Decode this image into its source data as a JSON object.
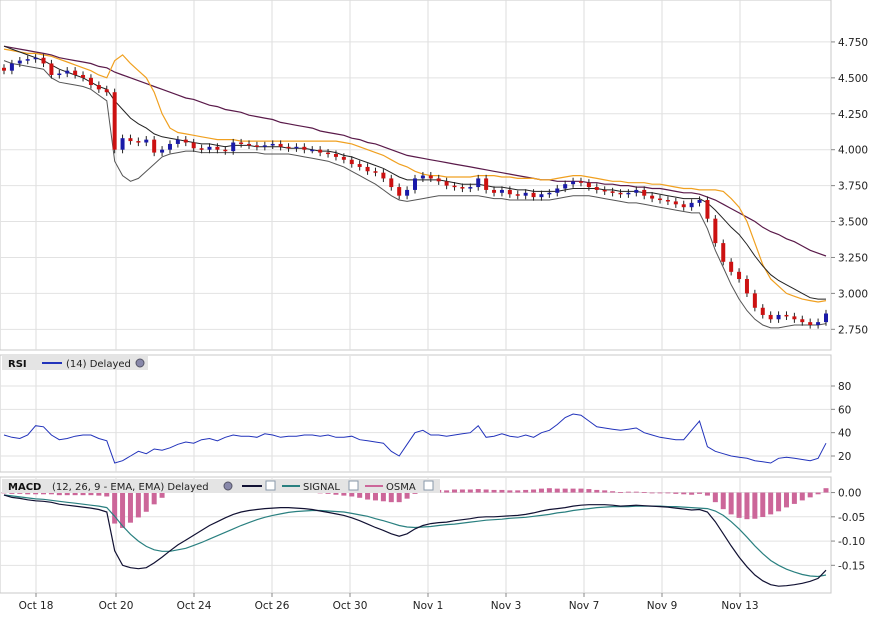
{
  "chart_data": {
    "type": "candlestick",
    "x_labels": [
      "Oct 18",
      "Oct 20",
      "Oct 24",
      "Oct 26",
      "Oct 30",
      "Nov 1",
      "Nov 3",
      "Nov 7",
      "Nov 9",
      "Nov 13"
    ],
    "colors": {
      "up": "#1a1aa8",
      "down": "#cc1111",
      "ema_fast": "#222222",
      "ema_slow": "#5a1a4a",
      "band_upper": "#f0a020",
      "band_lower": "#555555",
      "rsi": "#2233bb",
      "macd": "#111133",
      "signal": "#2a8080",
      "osma": "#cc6699"
    },
    "price_panel": {
      "ylim": [
        2.62,
        5.0
      ],
      "ticks": [
        "4.750",
        "4.500",
        "4.250",
        "4.000",
        "3.750",
        "3.500",
        "3.250",
        "3.000",
        "2.750"
      ],
      "close": [
        4.55,
        4.6,
        4.62,
        4.63,
        4.64,
        4.6,
        4.52,
        4.53,
        4.55,
        4.52,
        4.5,
        4.45,
        4.42,
        4.4,
        4.0,
        4.08,
        4.06,
        4.05,
        4.07,
        3.98,
        4.0,
        4.04,
        4.07,
        4.05,
        4.01,
        4.0,
        4.02,
        4.0,
        3.99,
        4.05,
        4.04,
        4.03,
        4.02,
        4.03,
        4.04,
        4.02,
        4.01,
        4.02,
        4.0,
        4.0,
        3.98,
        3.97,
        3.95,
        3.93,
        3.9,
        3.88,
        3.85,
        3.84,
        3.8,
        3.74,
        3.68,
        3.72,
        3.8,
        3.82,
        3.8,
        3.78,
        3.75,
        3.74,
        3.73,
        3.74,
        3.8,
        3.72,
        3.7,
        3.72,
        3.69,
        3.68,
        3.7,
        3.67,
        3.69,
        3.7,
        3.73,
        3.76,
        3.78,
        3.77,
        3.74,
        3.72,
        3.71,
        3.7,
        3.69,
        3.7,
        3.72,
        3.68,
        3.66,
        3.65,
        3.64,
        3.62,
        3.6,
        3.63,
        3.65,
        3.52,
        3.35,
        3.22,
        3.15,
        3.1,
        3.0,
        2.9,
        2.85,
        2.82,
        2.85,
        2.84,
        2.82,
        2.8,
        2.78,
        2.8,
        2.86
      ],
      "ema_fast": [
        4.72,
        4.7,
        4.68,
        4.66,
        4.64,
        4.62,
        4.59,
        4.56,
        4.54,
        4.52,
        4.5,
        4.47,
        4.44,
        4.42,
        4.34,
        4.28,
        4.22,
        4.18,
        4.15,
        4.11,
        4.09,
        4.08,
        4.07,
        4.06,
        4.05,
        4.04,
        4.04,
        4.03,
        4.02,
        4.03,
        4.03,
        4.03,
        4.02,
        4.02,
        4.02,
        4.02,
        4.01,
        4.01,
        4.01,
        4.0,
        3.99,
        3.99,
        3.98,
        3.96,
        3.95,
        3.93,
        3.91,
        3.89,
        3.87,
        3.84,
        3.81,
        3.79,
        3.79,
        3.79,
        3.79,
        3.79,
        3.78,
        3.77,
        3.76,
        3.76,
        3.76,
        3.75,
        3.74,
        3.74,
        3.73,
        3.72,
        3.72,
        3.71,
        3.71,
        3.71,
        3.71,
        3.72,
        3.73,
        3.73,
        3.73,
        3.73,
        3.72,
        3.72,
        3.71,
        3.71,
        3.71,
        3.7,
        3.7,
        3.69,
        3.68,
        3.67,
        3.66,
        3.66,
        3.66,
        3.63,
        3.58,
        3.52,
        3.46,
        3.41,
        3.34,
        3.26,
        3.19,
        3.13,
        3.09,
        3.06,
        3.03,
        3.0,
        2.97,
        2.96,
        2.96
      ],
      "ema_slow": [
        4.72,
        4.71,
        4.7,
        4.69,
        4.68,
        4.67,
        4.66,
        4.64,
        4.63,
        4.62,
        4.61,
        4.6,
        4.58,
        4.57,
        4.54,
        4.52,
        4.5,
        4.48,
        4.46,
        4.44,
        4.42,
        4.4,
        4.38,
        4.36,
        4.35,
        4.33,
        4.31,
        4.3,
        4.28,
        4.27,
        4.26,
        4.24,
        4.23,
        4.22,
        4.21,
        4.19,
        4.18,
        4.17,
        4.16,
        4.15,
        4.13,
        4.12,
        4.11,
        4.1,
        4.08,
        4.07,
        4.05,
        4.04,
        4.02,
        4.0,
        3.98,
        3.96,
        3.95,
        3.94,
        3.93,
        3.92,
        3.91,
        3.9,
        3.89,
        3.88,
        3.87,
        3.86,
        3.85,
        3.84,
        3.83,
        3.82,
        3.81,
        3.8,
        3.79,
        3.79,
        3.78,
        3.78,
        3.78,
        3.78,
        3.77,
        3.77,
        3.76,
        3.76,
        3.75,
        3.75,
        3.74,
        3.74,
        3.73,
        3.73,
        3.72,
        3.71,
        3.7,
        3.7,
        3.69,
        3.67,
        3.65,
        3.62,
        3.59,
        3.56,
        3.53,
        3.5,
        3.46,
        3.43,
        3.41,
        3.38,
        3.36,
        3.33,
        3.3,
        3.28,
        3.26
      ],
      "band_upper": [
        4.7,
        4.69,
        4.68,
        4.67,
        4.67,
        4.66,
        4.65,
        4.63,
        4.61,
        4.59,
        4.57,
        4.55,
        4.52,
        4.5,
        4.62,
        4.66,
        4.6,
        4.55,
        4.5,
        4.4,
        4.25,
        4.15,
        4.12,
        4.11,
        4.1,
        4.09,
        4.08,
        4.07,
        4.07,
        4.07,
        4.06,
        4.06,
        4.06,
        4.06,
        4.06,
        4.06,
        4.06,
        4.06,
        4.06,
        4.06,
        4.06,
        4.06,
        4.06,
        4.05,
        4.04,
        4.02,
        4.0,
        3.98,
        3.96,
        3.93,
        3.9,
        3.88,
        3.85,
        3.83,
        3.82,
        3.82,
        3.81,
        3.81,
        3.81,
        3.81,
        3.82,
        3.82,
        3.82,
        3.81,
        3.81,
        3.8,
        3.8,
        3.8,
        3.79,
        3.79,
        3.8,
        3.81,
        3.82,
        3.82,
        3.81,
        3.8,
        3.79,
        3.78,
        3.78,
        3.77,
        3.77,
        3.77,
        3.76,
        3.76,
        3.75,
        3.74,
        3.73,
        3.73,
        3.72,
        3.72,
        3.72,
        3.71,
        3.66,
        3.6,
        3.5,
        3.35,
        3.2,
        3.1,
        3.05,
        3.0,
        2.98,
        2.96,
        2.95,
        2.94,
        2.95
      ],
      "band_lower": [
        4.62,
        4.6,
        4.59,
        4.58,
        4.57,
        4.56,
        4.5,
        4.47,
        4.46,
        4.45,
        4.44,
        4.42,
        4.38,
        4.34,
        3.92,
        3.82,
        3.78,
        3.8,
        3.85,
        3.9,
        3.95,
        3.97,
        3.98,
        3.99,
        3.99,
        3.98,
        3.98,
        3.98,
        3.98,
        3.98,
        3.98,
        3.98,
        3.98,
        3.97,
        3.97,
        3.97,
        3.97,
        3.96,
        3.95,
        3.94,
        3.93,
        3.92,
        3.9,
        3.88,
        3.85,
        3.82,
        3.79,
        3.76,
        3.72,
        3.68,
        3.65,
        3.64,
        3.65,
        3.66,
        3.67,
        3.68,
        3.68,
        3.68,
        3.68,
        3.68,
        3.68,
        3.67,
        3.66,
        3.66,
        3.65,
        3.65,
        3.65,
        3.65,
        3.65,
        3.65,
        3.66,
        3.67,
        3.68,
        3.68,
        3.68,
        3.67,
        3.66,
        3.65,
        3.64,
        3.63,
        3.63,
        3.62,
        3.61,
        3.6,
        3.59,
        3.58,
        3.57,
        3.56,
        3.56,
        3.45,
        3.3,
        3.18,
        3.06,
        2.96,
        2.88,
        2.82,
        2.78,
        2.76,
        2.76,
        2.77,
        2.78,
        2.78,
        2.78,
        2.78,
        2.79
      ]
    },
    "rsi_panel": {
      "title": "RSI",
      "legend": "(14) Delayed",
      "ylim": [
        8,
        92
      ],
      "ticks": [
        "80",
        "60",
        "40",
        "20"
      ],
      "values": [
        38,
        36,
        35,
        38,
        46,
        45,
        38,
        34,
        35,
        37,
        38,
        38,
        35,
        33,
        14,
        16,
        20,
        24,
        22,
        26,
        25,
        27,
        30,
        32,
        31,
        34,
        35,
        33,
        36,
        38,
        37,
        37,
        36,
        39,
        38,
        36,
        37,
        37,
        38,
        38,
        37,
        38,
        36,
        36,
        37,
        34,
        33,
        32,
        31,
        24,
        20,
        30,
        40,
        42,
        38,
        38,
        37,
        38,
        39,
        40,
        46,
        36,
        37,
        39,
        37,
        36,
        38,
        36,
        40,
        42,
        47,
        53,
        56,
        55,
        50,
        45,
        44,
        43,
        42,
        43,
        44,
        40,
        38,
        36,
        35,
        34,
        34,
        42,
        50,
        28,
        24,
        22,
        20,
        19,
        18,
        16,
        15,
        14,
        18,
        19,
        18,
        17,
        16,
        18,
        31
      ]
    },
    "macd_panel": {
      "title": "MACD",
      "legend": "(12, 26, 9 - EMA, EMA) Delayed",
      "series_names": [
        "SIGNAL",
        "OSMA"
      ],
      "ylim": [
        -0.205,
        0.03
      ],
      "ticks": [
        "0.00",
        "-0.05",
        "-0.10",
        "-0.15"
      ],
      "macd": [
        -0.005,
        -0.01,
        -0.012,
        -0.015,
        -0.017,
        -0.018,
        -0.02,
        -0.024,
        -0.026,
        -0.028,
        -0.03,
        -0.032,
        -0.035,
        -0.04,
        -0.12,
        -0.15,
        -0.155,
        -0.157,
        -0.155,
        -0.145,
        -0.133,
        -0.12,
        -0.108,
        -0.098,
        -0.088,
        -0.078,
        -0.068,
        -0.06,
        -0.052,
        -0.045,
        -0.04,
        -0.037,
        -0.035,
        -0.033,
        -0.032,
        -0.031,
        -0.031,
        -0.032,
        -0.033,
        -0.035,
        -0.038,
        -0.041,
        -0.044,
        -0.047,
        -0.052,
        -0.058,
        -0.065,
        -0.072,
        -0.078,
        -0.085,
        -0.09,
        -0.085,
        -0.075,
        -0.068,
        -0.064,
        -0.062,
        -0.061,
        -0.058,
        -0.056,
        -0.054,
        -0.051,
        -0.05,
        -0.05,
        -0.049,
        -0.048,
        -0.047,
        -0.045,
        -0.042,
        -0.038,
        -0.035,
        -0.033,
        -0.031,
        -0.028,
        -0.026,
        -0.025,
        -0.025,
        -0.025,
        -0.026,
        -0.028,
        -0.027,
        -0.026,
        -0.027,
        -0.028,
        -0.029,
        -0.03,
        -0.032,
        -0.034,
        -0.036,
        -0.035,
        -0.04,
        -0.06,
        -0.085,
        -0.11,
        -0.133,
        -0.153,
        -0.17,
        -0.182,
        -0.19,
        -0.193,
        -0.192,
        -0.19,
        -0.187,
        -0.183,
        -0.177,
        -0.16
      ],
      "signal": [
        -0.005,
        -0.007,
        -0.009,
        -0.011,
        -0.013,
        -0.014,
        -0.016,
        -0.018,
        -0.02,
        -0.022,
        -0.024,
        -0.026,
        -0.028,
        -0.031,
        -0.049,
        -0.069,
        -0.086,
        -0.1,
        -0.111,
        -0.118,
        -0.121,
        -0.121,
        -0.118,
        -0.115,
        -0.109,
        -0.103,
        -0.096,
        -0.089,
        -0.082,
        -0.075,
        -0.068,
        -0.062,
        -0.056,
        -0.051,
        -0.047,
        -0.044,
        -0.041,
        -0.039,
        -0.038,
        -0.037,
        -0.037,
        -0.038,
        -0.039,
        -0.04,
        -0.043,
        -0.046,
        -0.049,
        -0.054,
        -0.058,
        -0.063,
        -0.068,
        -0.071,
        -0.072,
        -0.071,
        -0.07,
        -0.068,
        -0.066,
        -0.065,
        -0.063,
        -0.061,
        -0.059,
        -0.057,
        -0.056,
        -0.055,
        -0.053,
        -0.052,
        -0.051,
        -0.049,
        -0.047,
        -0.045,
        -0.042,
        -0.04,
        -0.037,
        -0.035,
        -0.033,
        -0.031,
        -0.03,
        -0.029,
        -0.029,
        -0.029,
        -0.028,
        -0.028,
        -0.028,
        -0.028,
        -0.029,
        -0.029,
        -0.03,
        -0.031,
        -0.032,
        -0.033,
        -0.038,
        -0.047,
        -0.06,
        -0.075,
        -0.092,
        -0.11,
        -0.126,
        -0.14,
        -0.15,
        -0.158,
        -0.164,
        -0.169,
        -0.172,
        -0.173,
        -0.17
      ]
    }
  }
}
